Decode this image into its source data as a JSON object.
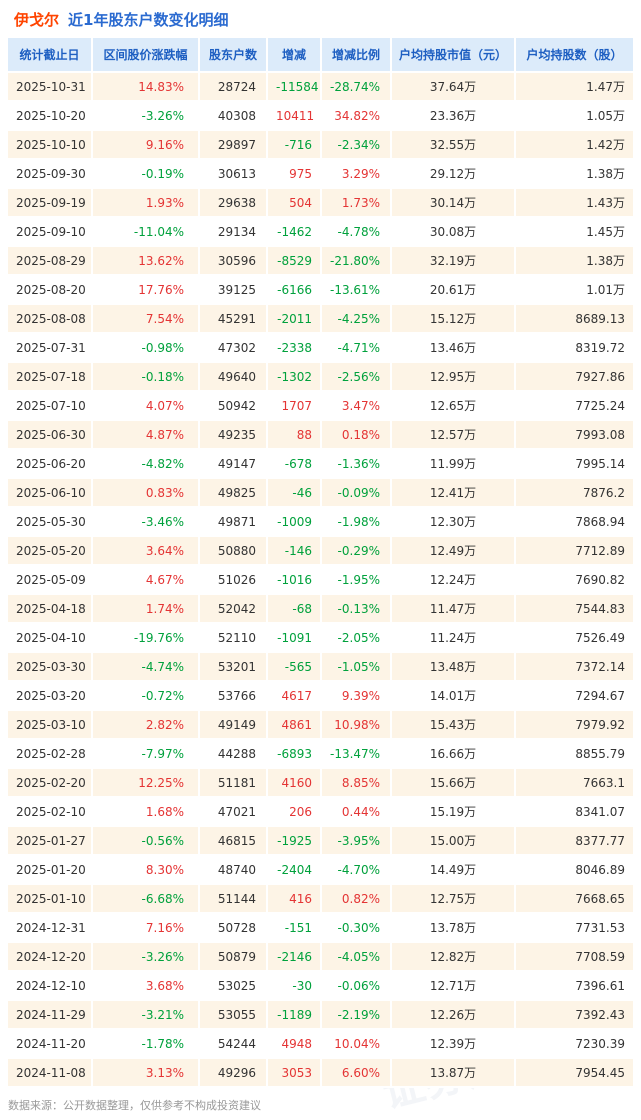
{
  "title": {
    "company": "伊戈尔",
    "rest": "近1年股东户数变化明细"
  },
  "watermark": {
    "text": "证券之星"
  },
  "footer": "数据来源：公开数据整理，仅供参考不构成投资建议",
  "colors": {
    "title_company": "#ff4400",
    "title_rest": "#2a6ad0",
    "positive_red": "#e43434",
    "negative_green": "#00a13c",
    "header_bg": "#dcebfa",
    "header_text": "#1e5fc2",
    "row_alt_bg": "#fdf4e6"
  },
  "chart_data": {
    "type": "table",
    "title": "伊戈尔 近1年股东户数变化明细",
    "columns": [
      "统计截止日",
      "区间股价涨跌幅",
      "股东户数",
      "增减",
      "增减比例",
      "户均持股市值（元）",
      "户均持股数（股）"
    ],
    "rows": [
      [
        "2025-10-31",
        "14.83%",
        "28724",
        "-11584",
        "-28.74%",
        "37.64万",
        "1.47万"
      ],
      [
        "2025-10-20",
        "-3.26%",
        "40308",
        "10411",
        "34.82%",
        "23.36万",
        "1.05万"
      ],
      [
        "2025-10-10",
        "9.16%",
        "29897",
        "-716",
        "-2.34%",
        "32.55万",
        "1.42万"
      ],
      [
        "2025-09-30",
        "-0.19%",
        "30613",
        "975",
        "3.29%",
        "29.12万",
        "1.38万"
      ],
      [
        "2025-09-19",
        "1.93%",
        "29638",
        "504",
        "1.73%",
        "30.14万",
        "1.43万"
      ],
      [
        "2025-09-10",
        "-11.04%",
        "29134",
        "-1462",
        "-4.78%",
        "30.08万",
        "1.45万"
      ],
      [
        "2025-08-29",
        "13.62%",
        "30596",
        "-8529",
        "-21.80%",
        "32.19万",
        "1.38万"
      ],
      [
        "2025-08-20",
        "17.76%",
        "39125",
        "-6166",
        "-13.61%",
        "20.61万",
        "1.01万"
      ],
      [
        "2025-08-08",
        "7.54%",
        "45291",
        "-2011",
        "-4.25%",
        "15.12万",
        "8689.13"
      ],
      [
        "2025-07-31",
        "-0.98%",
        "47302",
        "-2338",
        "-4.71%",
        "13.46万",
        "8319.72"
      ],
      [
        "2025-07-18",
        "-0.18%",
        "49640",
        "-1302",
        "-2.56%",
        "12.95万",
        "7927.86"
      ],
      [
        "2025-07-10",
        "4.07%",
        "50942",
        "1707",
        "3.47%",
        "12.65万",
        "7725.24"
      ],
      [
        "2025-06-30",
        "4.87%",
        "49235",
        "88",
        "0.18%",
        "12.57万",
        "7993.08"
      ],
      [
        "2025-06-20",
        "-4.82%",
        "49147",
        "-678",
        "-1.36%",
        "11.99万",
        "7995.14"
      ],
      [
        "2025-06-10",
        "0.83%",
        "49825",
        "-46",
        "-0.09%",
        "12.41万",
        "7876.2"
      ],
      [
        "2025-05-30",
        "-3.46%",
        "49871",
        "-1009",
        "-1.98%",
        "12.30万",
        "7868.94"
      ],
      [
        "2025-05-20",
        "3.64%",
        "50880",
        "-146",
        "-0.29%",
        "12.49万",
        "7712.89"
      ],
      [
        "2025-05-09",
        "4.67%",
        "51026",
        "-1016",
        "-1.95%",
        "12.24万",
        "7690.82"
      ],
      [
        "2025-04-18",
        "1.74%",
        "52042",
        "-68",
        "-0.13%",
        "11.47万",
        "7544.83"
      ],
      [
        "2025-04-10",
        "-19.76%",
        "52110",
        "-1091",
        "-2.05%",
        "11.24万",
        "7526.49"
      ],
      [
        "2025-03-30",
        "-4.74%",
        "53201",
        "-565",
        "-1.05%",
        "13.48万",
        "7372.14"
      ],
      [
        "2025-03-20",
        "-0.72%",
        "53766",
        "4617",
        "9.39%",
        "14.01万",
        "7294.67"
      ],
      [
        "2025-03-10",
        "2.82%",
        "49149",
        "4861",
        "10.98%",
        "15.43万",
        "7979.92"
      ],
      [
        "2025-02-28",
        "-7.97%",
        "44288",
        "-6893",
        "-13.47%",
        "16.66万",
        "8855.79"
      ],
      [
        "2025-02-20",
        "12.25%",
        "51181",
        "4160",
        "8.85%",
        "15.66万",
        "7663.1"
      ],
      [
        "2025-02-10",
        "1.68%",
        "47021",
        "206",
        "0.44%",
        "15.19万",
        "8341.07"
      ],
      [
        "2025-01-27",
        "-0.56%",
        "46815",
        "-1925",
        "-3.95%",
        "15.00万",
        "8377.77"
      ],
      [
        "2025-01-20",
        "8.30%",
        "48740",
        "-2404",
        "-4.70%",
        "14.49万",
        "8046.89"
      ],
      [
        "2025-01-10",
        "-6.68%",
        "51144",
        "416",
        "0.82%",
        "12.75万",
        "7668.65"
      ],
      [
        "2024-12-31",
        "7.16%",
        "50728",
        "-151",
        "-0.30%",
        "13.78万",
        "7731.53"
      ],
      [
        "2024-12-20",
        "-3.26%",
        "50879",
        "-2146",
        "-4.05%",
        "12.82万",
        "7708.59"
      ],
      [
        "2024-12-10",
        "3.68%",
        "53025",
        "-30",
        "-0.06%",
        "12.71万",
        "7396.61"
      ],
      [
        "2024-11-29",
        "-3.21%",
        "53055",
        "-1189",
        "-2.19%",
        "12.26万",
        "7392.43"
      ],
      [
        "2024-11-20",
        "-1.78%",
        "54244",
        "4948",
        "10.04%",
        "12.39万",
        "7230.39"
      ],
      [
        "2024-11-08",
        "3.13%",
        "49296",
        "3053",
        "6.60%",
        "13.87万",
        "7954.45"
      ]
    ]
  }
}
